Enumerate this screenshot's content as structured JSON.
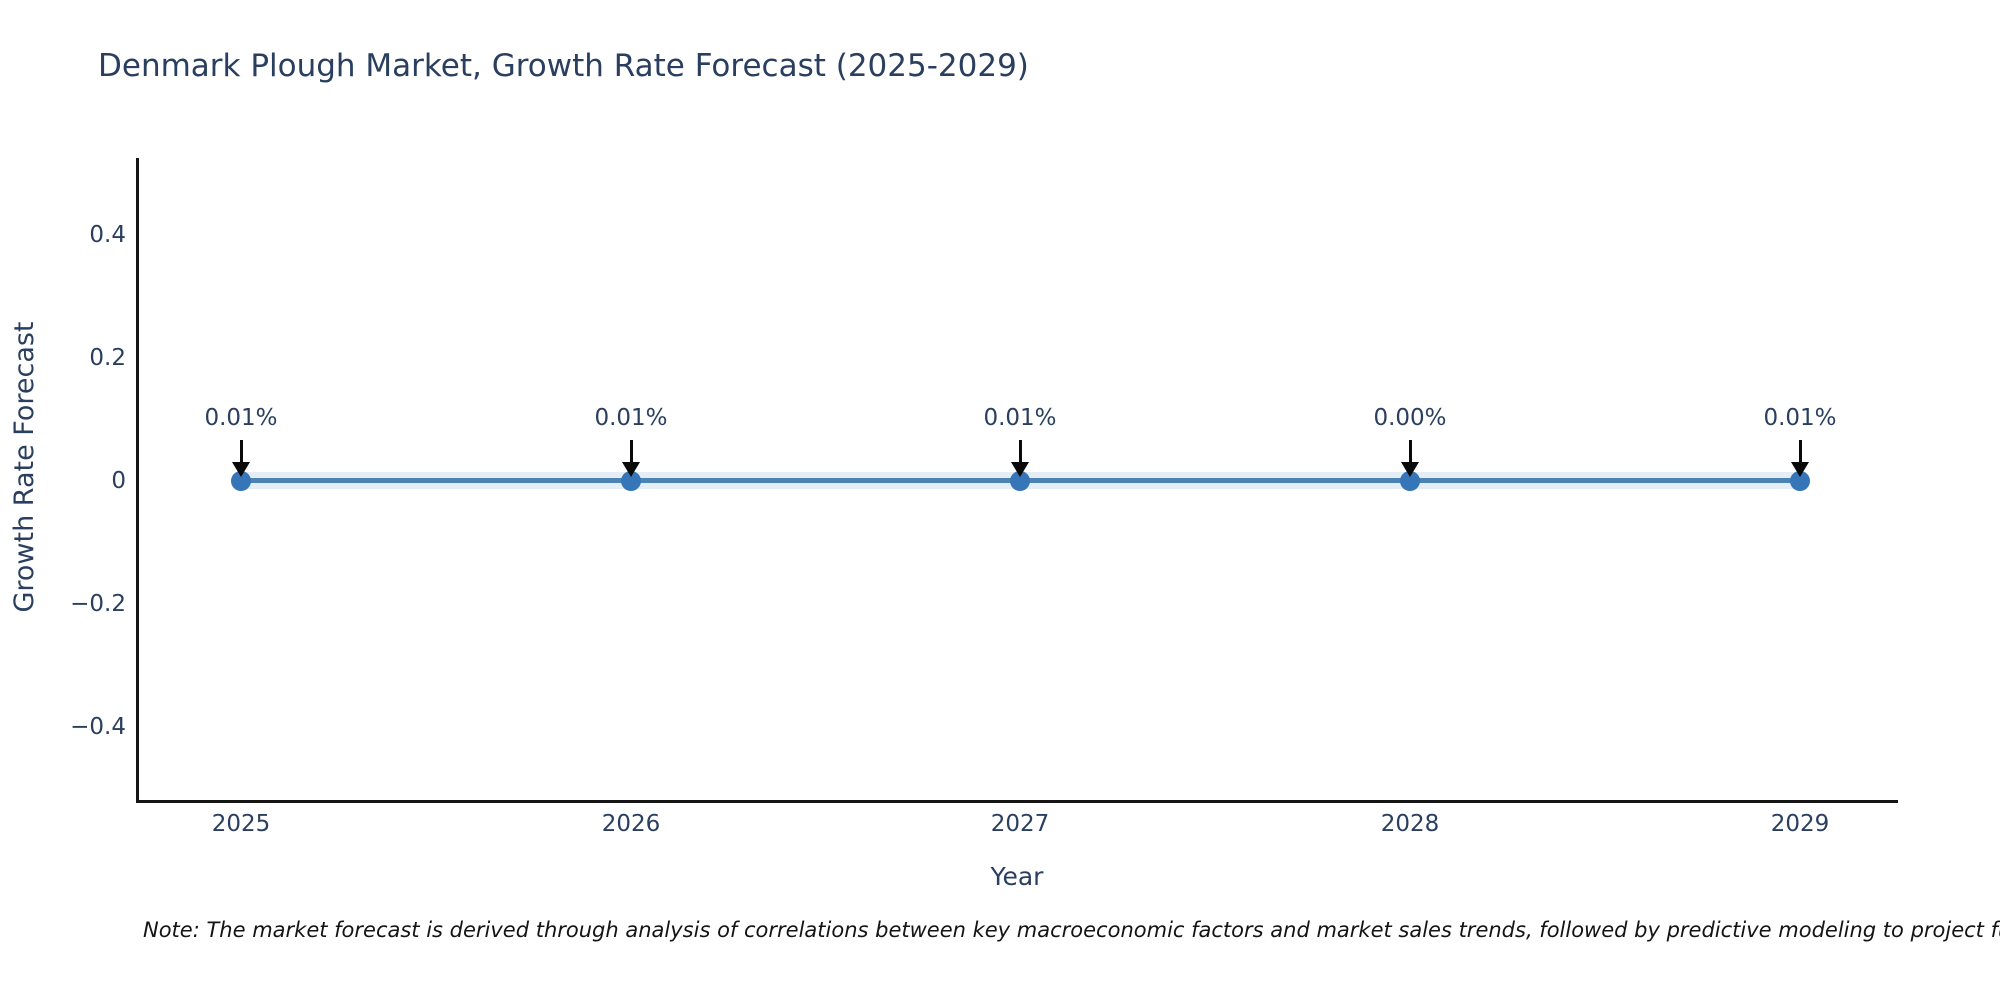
{
  "chart_data": {
    "type": "line",
    "title": "Denmark Plough Market, Growth Rate Forecast (2025-2029)",
    "xlabel": "Year",
    "ylabel": "Growth Rate Forecast",
    "categories": [
      "2025",
      "2026",
      "2027",
      "2028",
      "2029"
    ],
    "series": [
      {
        "name": "Growth Rate Forecast",
        "values": [
          0.01,
          0.01,
          0.01,
          0.0,
          0.01
        ],
        "unit": "percent"
      }
    ],
    "annotations": [
      "0.01%",
      "0.01%",
      "0.01%",
      "0.00%",
      "0.01%"
    ],
    "y_ticks": [
      "0.4",
      "0.2",
      "0",
      "−0.2",
      "−0.4"
    ],
    "ylim": [
      -0.52,
      0.52
    ],
    "grid": false,
    "legend": false,
    "colors": {
      "line": "#4b84b4",
      "marker": "#3575b8",
      "text": "#2a3f5f",
      "axis": "#151515",
      "annotation_arrow": "#0a0a0a",
      "background": "#ffffff"
    }
  },
  "note": "Note: The market forecast is derived through analysis of correlations between key macroeconomic factors and market sales trends, followed by predictive modeling to project future sa"
}
